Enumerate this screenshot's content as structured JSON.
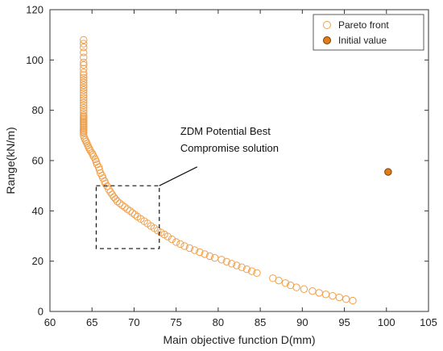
{
  "chart_data": {
    "type": "scatter",
    "xlabel": "Main objective function D(mm)",
    "ylabel": "Range(kN/m)",
    "xlim": [
      60,
      105
    ],
    "ylim": [
      0,
      120
    ],
    "xticks": [
      60,
      65,
      70,
      75,
      80,
      85,
      90,
      95,
      100,
      105
    ],
    "yticks": [
      0,
      20,
      40,
      60,
      80,
      100,
      120
    ],
    "grid": false,
    "legend_position": "top-right",
    "colors": {
      "marker": "#f0a04b",
      "initial_fill": "#e07c1a",
      "initial_edge": "#7a3f00",
      "axis": "#333333"
    },
    "series": [
      {
        "name": "Pareto front",
        "marker": "hollow-circle",
        "x": [
          64.0,
          64.0,
          64.0,
          64.0,
          64.0,
          64.0,
          64.0,
          64.0,
          64.0,
          64.0,
          64.0,
          64.0,
          64.0,
          64.0,
          64.0,
          64.0,
          64.0,
          64.0,
          64.0,
          64.0,
          64.0,
          64.0,
          64.0,
          64.0,
          64.0,
          64.0,
          64.0,
          64.0,
          64.0,
          64.0,
          64.0,
          64.0,
          64.0,
          64.0,
          64.0,
          64.0,
          64.0,
          64.0,
          64.0,
          64.0,
          64.0,
          64.1,
          64.2,
          64.3,
          64.4,
          64.5,
          64.6,
          64.7,
          64.8,
          65.0,
          65.1,
          65.2,
          65.4,
          65.5,
          65.6,
          65.8,
          65.9,
          66.0,
          66.2,
          66.3,
          66.5,
          66.6,
          66.8,
          67.0,
          67.2,
          67.4,
          67.6,
          67.8,
          68.0,
          68.3,
          68.6,
          68.9,
          69.2,
          69.5,
          69.8,
          70.1,
          70.4,
          70.8,
          71.2,
          71.6,
          72.0,
          72.4,
          72.8,
          73.2,
          73.6,
          74.0,
          74.5,
          75.0,
          75.5,
          76.0,
          76.6,
          77.2,
          77.8,
          78.4,
          79.0,
          79.6,
          80.4,
          81.0,
          81.6,
          82.2,
          82.8,
          83.4,
          84.0,
          84.6,
          86.5,
          87.2,
          88.0,
          88.6,
          89.3,
          90.2,
          91.2,
          92.0,
          92.8,
          93.6,
          94.4,
          95.2,
          96.0
        ],
        "y": [
          108.0,
          106.5,
          105.0,
          103.0,
          101.0,
          99.0,
          98.0,
          96.5,
          95.0,
          94.0,
          93.0,
          92.0,
          91.0,
          90.0,
          89.0,
          88.0,
          87.0,
          86.0,
          85.0,
          84.0,
          83.0,
          82.0,
          81.0,
          80.0,
          79.0,
          78.0,
          77.5,
          77.0,
          76.5,
          76.0,
          75.5,
          75.0,
          74.5,
          74.0,
          73.5,
          73.0,
          72.5,
          72.0,
          71.5,
          71.0,
          70.0,
          69.0,
          68.2,
          67.5,
          66.8,
          66.0,
          65.3,
          64.6,
          63.9,
          63.0,
          62.3,
          61.6,
          60.5,
          59.5,
          58.5,
          57.4,
          56.3,
          55.0,
          54.0,
          53.0,
          51.8,
          50.8,
          49.8,
          48.5,
          47.5,
          46.5,
          45.5,
          44.7,
          43.8,
          43.0,
          42.2,
          41.5,
          40.7,
          40.0,
          39.2,
          38.5,
          37.7,
          36.8,
          35.9,
          35.0,
          34.0,
          33.1,
          32.2,
          31.4,
          30.6,
          29.8,
          28.7,
          27.6,
          26.8,
          26.0,
          25.2,
          24.4,
          23.6,
          22.8,
          22.0,
          21.3,
          20.6,
          19.8,
          19.0,
          18.3,
          17.6,
          16.8,
          16.0,
          15.3,
          13.2,
          12.3,
          11.3,
          10.4,
          9.6,
          8.9,
          8.1,
          7.4,
          6.8,
          6.2,
          5.6,
          4.9,
          4.3
        ]
      },
      {
        "name": "Initial value",
        "marker": "filled-circle",
        "x": [
          100.2
        ],
        "y": [
          55.5
        ]
      }
    ],
    "annotation": {
      "text_lines": [
        "ZDM Potential Best",
        "Compromise solution"
      ],
      "box_x": [
        65.5,
        73.0
      ],
      "box_y": [
        25,
        50
      ],
      "text_at": [
        75.5,
        62.5
      ],
      "arrow_end": [
        73.0,
        50
      ],
      "arrow_start": [
        77.5,
        57.5
      ]
    }
  }
}
